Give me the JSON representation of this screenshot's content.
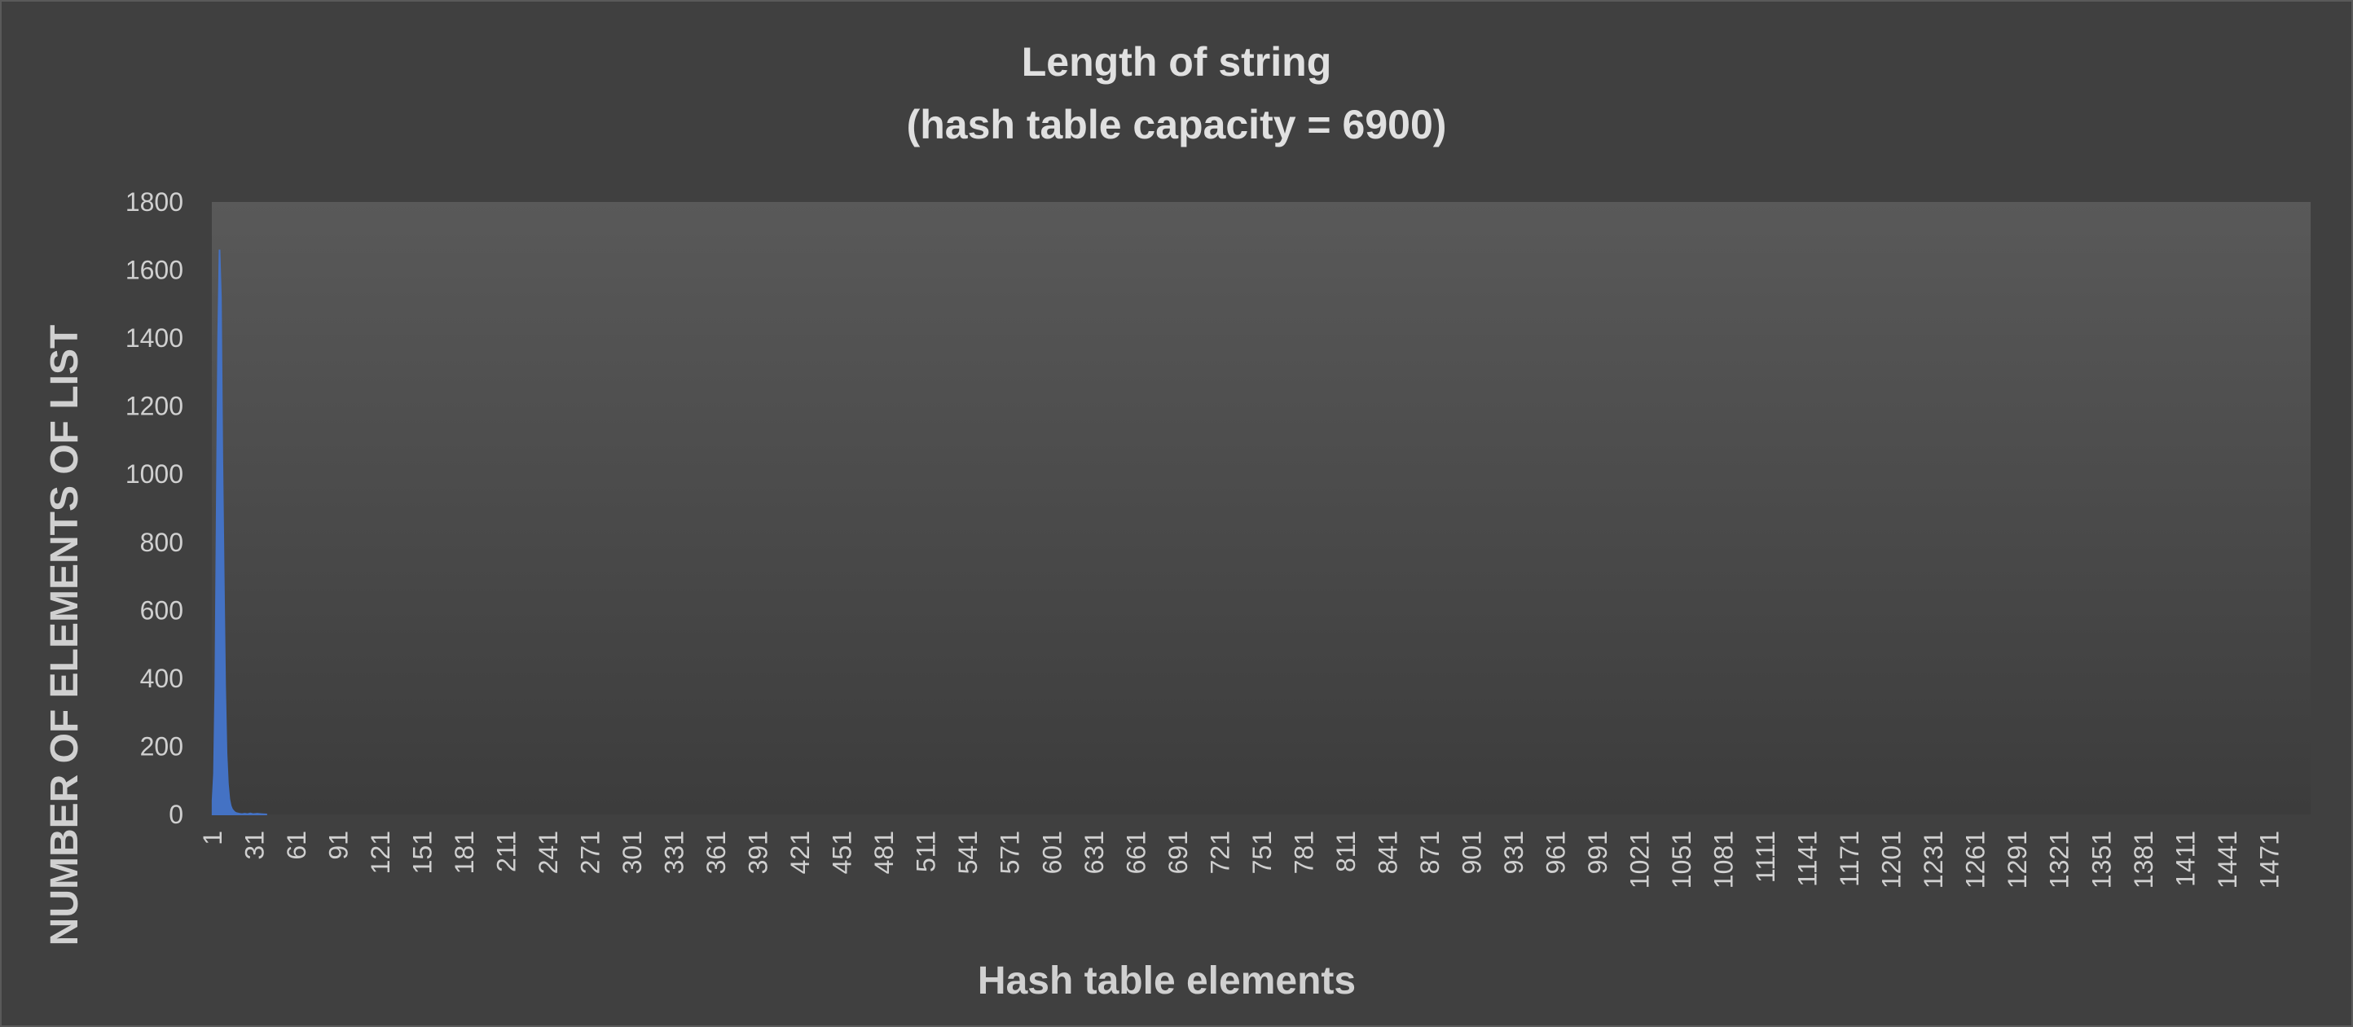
{
  "chart_data": {
    "type": "area",
    "title": "Length of string",
    "subtitle": "(hash table capacity = 6900)",
    "xlabel": "Hash table elements",
    "ylabel": "NUMBER OF ELEMENTS OF LIST",
    "ylim": [
      0,
      1800
    ],
    "yticks": [
      0,
      200,
      400,
      600,
      800,
      1000,
      1200,
      1400,
      1600,
      1800
    ],
    "x_range": [
      1,
      1500
    ],
    "xtick_labels": [
      "1",
      "31",
      "61",
      "91",
      "121",
      "151",
      "181",
      "211",
      "241",
      "271",
      "301",
      "331",
      "361",
      "391",
      "421",
      "451",
      "481",
      "511",
      "541",
      "571",
      "601",
      "631",
      "661",
      "691",
      "721",
      "751",
      "781",
      "811",
      "841",
      "871",
      "901",
      "931",
      "961",
      "991",
      "1021",
      "1051",
      "1081",
      "1111",
      "1141",
      "1171",
      "1201",
      "1231",
      "1261",
      "1291",
      "1321",
      "1351",
      "1381",
      "1411",
      "1441",
      "1471"
    ],
    "series_color": "#4472c4",
    "grid": false,
    "legend": "none",
    "series": [
      {
        "x": [
          1,
          2,
          3,
          4,
          5,
          6,
          7,
          8,
          9,
          10,
          11,
          12,
          13,
          14,
          15,
          16,
          17,
          18,
          19,
          20,
          22,
          24,
          26,
          28,
          30,
          33,
          36,
          40
        ],
        "values": [
          40,
          120,
          380,
          900,
          1400,
          1660,
          1520,
          1050,
          700,
          380,
          180,
          90,
          45,
          25,
          15,
          10,
          6,
          4,
          3,
          2,
          1,
          2,
          1,
          3,
          1,
          2,
          1,
          0
        ]
      }
    ]
  }
}
